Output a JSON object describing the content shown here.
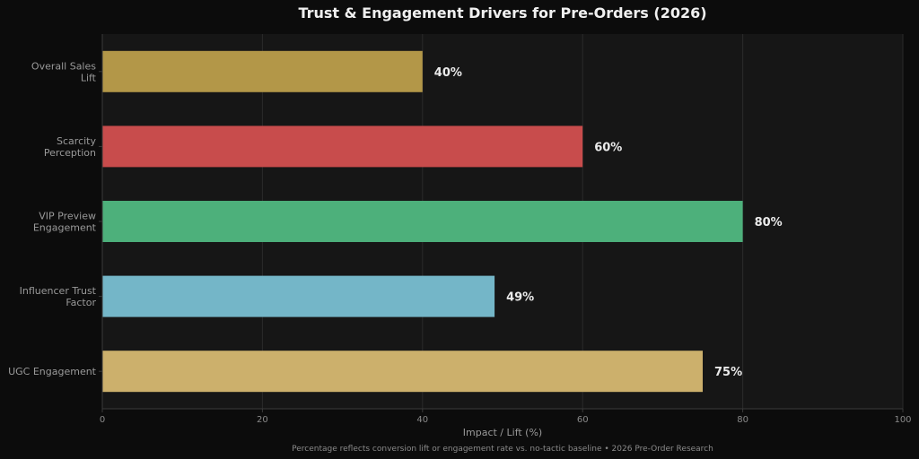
{
  "chart_data": {
    "type": "bar",
    "orientation": "horizontal",
    "title": "Trust & Engagement Drivers for Pre-Orders (2026)",
    "xlabel": "Impact / Lift (%)",
    "ylabel": "",
    "xlim": [
      0,
      100
    ],
    "xticks": [
      0,
      20,
      40,
      60,
      80,
      100
    ],
    "grid": true,
    "categories": [
      [
        "Overall Sales",
        "Lift"
      ],
      [
        "Scarcity",
        "Perception"
      ],
      [
        "VIP Preview",
        "Engagement"
      ],
      [
        "Influencer Trust",
        "Factor"
      ],
      [
        "UGC Engagement"
      ]
    ],
    "values": [
      40,
      60,
      80,
      49,
      75
    ],
    "data_labels": [
      "40%",
      "60%",
      "80%",
      "49%",
      "75%"
    ],
    "colors": [
      "#b39748",
      "#c84c4c",
      "#4db07b",
      "#74b6c8",
      "#ccb06c"
    ],
    "footnote": "Percentage reflects conversion lift or engagement rate vs. no-tactic baseline  •  2026 Pre-Order Research"
  },
  "theme": {
    "background": "#0c0c0c",
    "plot_background": "#161616",
    "grid_color": "#2a2a2a",
    "axis_color": "#3a3a3a"
  }
}
